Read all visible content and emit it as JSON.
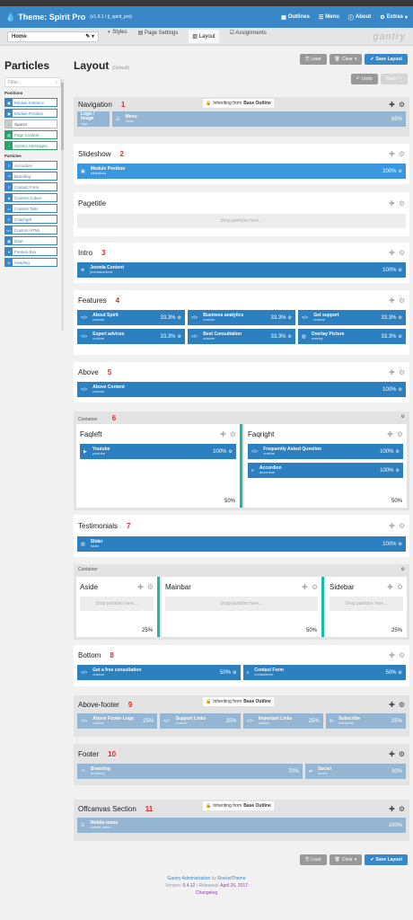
{
  "header": {
    "title": "Theme: Spirit Pro",
    "version": "(v1.0.1 / jl_spirit_pro)",
    "nav": [
      "Outlines",
      "Menu",
      "About",
      "Extras"
    ]
  },
  "toolbar": {
    "outline_select": "Home",
    "tabs": [
      "Styles",
      "Page Settings",
      "Layout",
      "Assignments"
    ],
    "logo": "gantry"
  },
  "sidebar": {
    "title": "Particles",
    "filter_placeholder": "Filter...",
    "positions_label": "Positions",
    "positions": [
      "Module Instance",
      "Module Position",
      "Spacer",
      "Page Content",
      "System Messages"
    ],
    "particles_label": "Particles",
    "particles": [
      "Accordion",
      "Branding",
      "Contact Form",
      "Content Cubes",
      "Content Tabs",
      "Copyright",
      "Custom HTML",
      "Date",
      "Feature Box",
      "Heading"
    ]
  },
  "layout": {
    "title": "Layout",
    "subtitle": "(Default)",
    "load": "Load",
    "clear": "Clear",
    "save": "Save Layout",
    "undo": "Undo",
    "redo": "Redo",
    "inheriting": "Inheriting from",
    "base_outline": "Base Outline",
    "drop_text": "Drop particles here...",
    "container_label": "Container"
  },
  "sections": {
    "navigation": {
      "name": "Navigation",
      "num": "1",
      "b1": "Logo / Image",
      "b1s": "logo",
      "b2": "Menu",
      "b2s": "menu",
      "pct": "85%"
    },
    "slideshow": {
      "name": "Slideshow",
      "num": "2",
      "b1": "Module Position",
      "b1s": "slideshow",
      "pct": "100%"
    },
    "pagetitle": {
      "name": "Pagetitle"
    },
    "intro": {
      "name": "Intro",
      "num": "3",
      "b1": "Joomla Content",
      "b1s": "joomlacontent",
      "pct": "100%"
    },
    "features": {
      "name": "Features",
      "num": "4",
      "row1": [
        {
          "t": "About Spirit",
          "s": "custom",
          "p": "33.3%"
        },
        {
          "t": "Business analytics",
          "s": "custom",
          "p": "33.3%"
        },
        {
          "t": "Get support",
          "s": "custom",
          "p": "33.3%"
        }
      ],
      "row2": [
        {
          "t": "Expert advices",
          "s": "custom",
          "p": "33.3%"
        },
        {
          "t": "Best Consultation",
          "s": "custom",
          "p": "33.3%"
        },
        {
          "t": "Overlay Picture",
          "s": "overlay",
          "p": "33.3%"
        }
      ]
    },
    "above": {
      "name": "Above",
      "num": "5",
      "b1": "Above Content",
      "b1s": "custom",
      "pct": "100%"
    },
    "faq": {
      "num": "6",
      "left": "Faqleft",
      "right": "Faqright",
      "l1": "Youtube",
      "l1s": "youtube",
      "l1p": "100%",
      "r1": "Frequently Asked Question",
      "r1s": "custom",
      "r1p": "100%",
      "r2": "Accordion",
      "r2s": "accordion",
      "r2p": "100%",
      "lpct": "50%",
      "rpct": "50%"
    },
    "testimonials": {
      "name": "Testimonials",
      "num": "7",
      "b1": "Slider",
      "b1s": "slider",
      "pct": "100%"
    },
    "main": {
      "aside": "Aside",
      "mainbar": "Mainbar",
      "sidebar": "Sidebar",
      "aside_pct": "25%",
      "main_pct": "50%",
      "side_pct": "25%"
    },
    "bottom": {
      "name": "Bottom",
      "num": "8",
      "b1": "Get a free consultation",
      "b1s": "custom",
      "b1p": "50%",
      "b2": "Contact Form",
      "b2s": "contactform",
      "b2p": "50%"
    },
    "abovefooter": {
      "name": "Above-footer",
      "num": "9",
      "items": [
        {
          "t": "Above Footer Logo",
          "s": "custom",
          "p": "25%"
        },
        {
          "t": "Support Links",
          "s": "custom",
          "p": "25%"
        },
        {
          "t": "Important Links",
          "s": "custom",
          "p": "25%"
        },
        {
          "t": "Subscribe",
          "s": "subscribe",
          "p": "25%"
        }
      ]
    },
    "footer": {
      "name": "Footer",
      "num": "10",
      "b1": "Branding",
      "b1s": "branding",
      "b1p": "70%",
      "b2": "Social",
      "b2s": "social",
      "b2p": "30%"
    },
    "offcanvas": {
      "name": "Offcanvas Section",
      "num": "11",
      "b1": "Mobile-menu",
      "b1s": "mobile-menu",
      "pct": "100%"
    }
  },
  "footer": {
    "line1a": "Gantry Administration",
    "line1b": "by",
    "line1c": "RocketTheme",
    "line2a": "Version:",
    "line2b": "5.4.12",
    "line2c": "/ Released:",
    "line2d": "April 26, 2017",
    "line3": "Changelog"
  }
}
